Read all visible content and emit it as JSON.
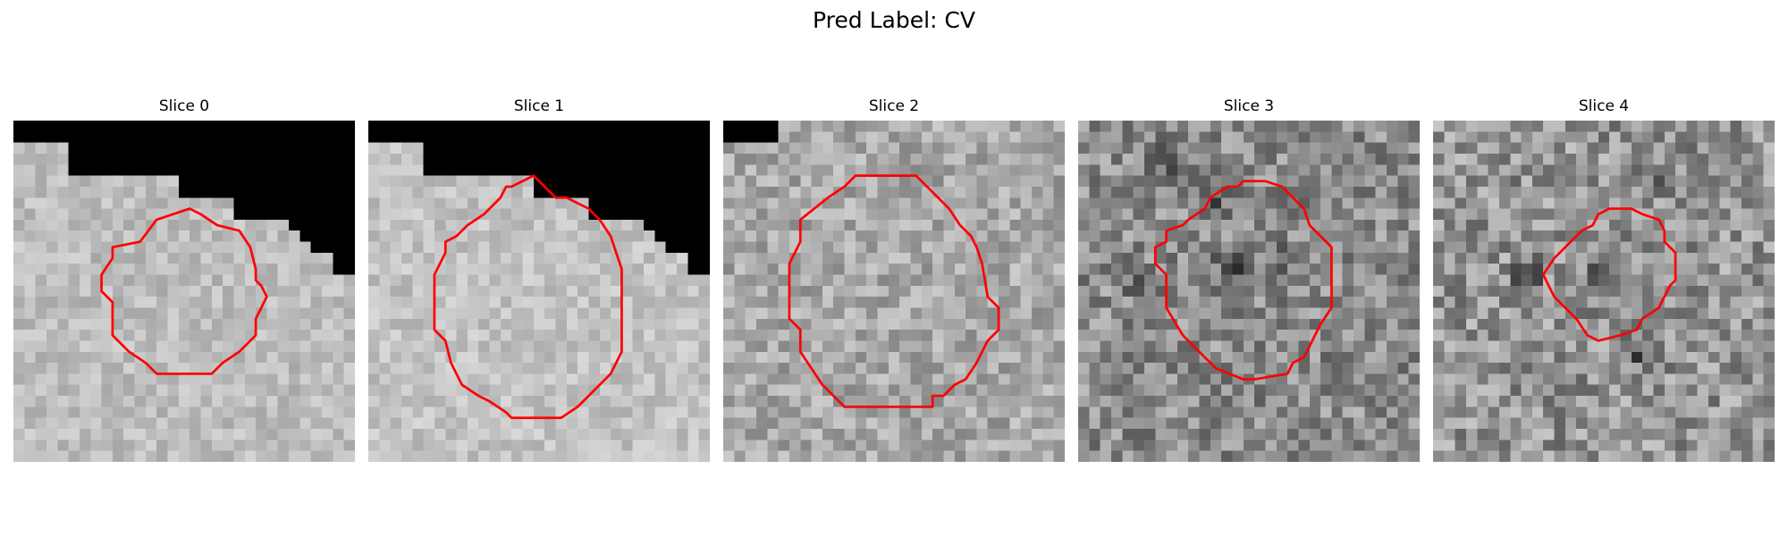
{
  "figure": {
    "title": "Pred Label: CV"
  },
  "panels": [
    {
      "title": "Slice 0",
      "mean_brightness": 0.74,
      "contrast": 0.09,
      "dark_corner": "top-right",
      "outline_color": "#ff0000"
    },
    {
      "title": "Slice 1",
      "mean_brightness": 0.76,
      "contrast": 0.09,
      "dark_corner": "top-right",
      "outline_color": "#ff0000"
    },
    {
      "title": "Slice 2",
      "mean_brightness": 0.66,
      "contrast": 0.14,
      "dark_corner": "top-left-small",
      "outline_color": "#ff0000"
    },
    {
      "title": "Slice 3",
      "mean_brightness": 0.55,
      "contrast": 0.19,
      "dark_corner": "none",
      "outline_color": "#ff0000"
    },
    {
      "title": "Slice 4",
      "mean_brightness": 0.58,
      "contrast": 0.2,
      "dark_corner": "none",
      "outline_color": "#ff0000"
    }
  ]
}
